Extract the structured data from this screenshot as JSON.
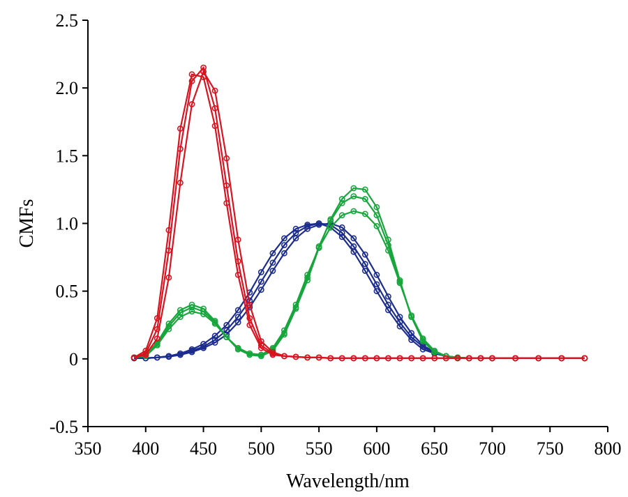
{
  "chart_data": {
    "type": "line",
    "title": "",
    "xlabel": "Wavelength/nm",
    "ylabel": "CMFs",
    "xlim": [
      350,
      800
    ],
    "ylim": [
      -0.5,
      2.5
    ],
    "x_ticks": [
      "350",
      "400",
      "450",
      "500",
      "550",
      "600",
      "650",
      "700",
      "750",
      "800"
    ],
    "y_ticks": [
      "-0.5",
      "0",
      "0.5",
      "1.0",
      "1.5",
      "2.0",
      "2.5"
    ],
    "grid": false,
    "legend": "none",
    "marker": "open-circle",
    "x": [
      390,
      400,
      410,
      420,
      430,
      440,
      450,
      460,
      470,
      480,
      490,
      500,
      510,
      520,
      530,
      540,
      550,
      560,
      570,
      580,
      590,
      600,
      610,
      620,
      630,
      640,
      650,
      660,
      670,
      680,
      690,
      700,
      720,
      740,
      760,
      780
    ],
    "series_groups": [
      {
        "color": "#d8141f",
        "series": [
          {
            "values": [
              0.01,
              0.04,
              0.22,
              0.8,
              1.55,
              2.05,
              2.15,
              1.85,
              1.28,
              0.72,
              0.3,
              0.1,
              0.04,
              0.02,
              0.015,
              0.01,
              0.01,
              0.005,
              0.005,
              0.005,
              0.005,
              0.005,
              0.005,
              0.005,
              0.005,
              0.005,
              0.005,
              0.005,
              0.005,
              0.005,
              0.005,
              0.005,
              0.005,
              0.005,
              0.005,
              0.005
            ]
          },
          {
            "values": [
              0.01,
              0.06,
              0.3,
              0.95,
              1.7,
              2.1,
              2.08,
              1.72,
              1.15,
              0.62,
              0.25,
              0.08,
              0.03,
              0.02,
              0.015,
              0.01,
              0.01,
              0.005,
              0.005,
              0.005,
              0.005,
              0.005,
              0.005,
              0.005,
              0.005,
              0.005,
              0.005,
              0.005,
              0.005,
              0.005,
              0.005,
              0.005,
              0.005,
              0.005,
              0.005,
              0.005
            ]
          },
          {
            "values": [
              0.01,
              0.03,
              0.15,
              0.6,
              1.3,
              1.88,
              2.12,
              1.98,
              1.48,
              0.88,
              0.4,
              0.13,
              0.05,
              0.02,
              0.015,
              0.01,
              0.01,
              0.005,
              0.005,
              0.005,
              0.005,
              0.005,
              0.005,
              0.005,
              0.005,
              0.005,
              0.005,
              0.005,
              0.005,
              0.005,
              0.005,
              0.005,
              0.005,
              0.005,
              0.005,
              0.005
            ]
          }
        ]
      },
      {
        "color": "#17a63c",
        "series": [
          {
            "values": [
              0.01,
              0.03,
              0.12,
              0.26,
              0.36,
              0.4,
              0.37,
              0.28,
              0.16,
              0.07,
              0.03,
              0.02,
              0.06,
              0.18,
              0.37,
              0.58,
              0.82,
              1.03,
              1.18,
              1.26,
              1.25,
              1.12,
              0.88,
              0.58,
              0.31,
              0.13,
              0.05,
              0.02,
              0.01,
              0.005,
              0.005,
              0.005,
              0.005,
              0.005,
              0.005,
              0.005
            ]
          },
          {
            "values": [
              0.01,
              0.03,
              0.11,
              0.24,
              0.34,
              0.38,
              0.35,
              0.27,
              0.16,
              0.08,
              0.04,
              0.03,
              0.07,
              0.19,
              0.38,
              0.6,
              0.83,
              1.02,
              1.15,
              1.2,
              1.18,
              1.06,
              0.84,
              0.57,
              0.31,
              0.14,
              0.05,
              0.02,
              0.01,
              0.005,
              0.005,
              0.005,
              0.005,
              0.005,
              0.005,
              0.005
            ]
          },
          {
            "values": [
              0.01,
              0.02,
              0.1,
              0.22,
              0.31,
              0.35,
              0.33,
              0.26,
              0.16,
              0.08,
              0.04,
              0.03,
              0.08,
              0.21,
              0.4,
              0.62,
              0.82,
              0.97,
              1.06,
              1.09,
              1.07,
              0.98,
              0.8,
              0.56,
              0.32,
              0.15,
              0.06,
              0.02,
              0.01,
              0.005,
              0.005,
              0.005,
              0.005,
              0.005,
              0.005,
              0.005
            ]
          }
        ]
      },
      {
        "color": "#1c2d8f",
        "series": [
          {
            "values": [
              0.005,
              0.005,
              0.01,
              0.02,
              0.04,
              0.07,
              0.11,
              0.17,
              0.25,
              0.36,
              0.49,
              0.64,
              0.78,
              0.89,
              0.96,
              0.99,
              1.0,
              0.97,
              0.9,
              0.79,
              0.65,
              0.5,
              0.36,
              0.24,
              0.14,
              0.07,
              0.04,
              0.02,
              0.01,
              0.005,
              0.005,
              0.005,
              0.005,
              0.005,
              0.005,
              0.005
            ]
          },
          {
            "values": [
              0.005,
              0.005,
              0.01,
              0.02,
              0.03,
              0.06,
              0.09,
              0.14,
              0.21,
              0.31,
              0.43,
              0.57,
              0.71,
              0.84,
              0.93,
              0.98,
              1.0,
              0.99,
              0.93,
              0.83,
              0.7,
              0.55,
              0.4,
              0.27,
              0.16,
              0.09,
              0.04,
              0.02,
              0.01,
              0.005,
              0.005,
              0.005,
              0.005,
              0.005,
              0.005,
              0.005
            ]
          },
          {
            "values": [
              0.005,
              0.005,
              0.01,
              0.015,
              0.03,
              0.05,
              0.08,
              0.12,
              0.18,
              0.27,
              0.38,
              0.51,
              0.65,
              0.78,
              0.89,
              0.96,
              0.99,
              1.0,
              0.97,
              0.89,
              0.77,
              0.62,
              0.46,
              0.31,
              0.19,
              0.1,
              0.05,
              0.02,
              0.01,
              0.005,
              0.005,
              0.005,
              0.005,
              0.005,
              0.005,
              0.005
            ]
          }
        ]
      }
    ]
  }
}
